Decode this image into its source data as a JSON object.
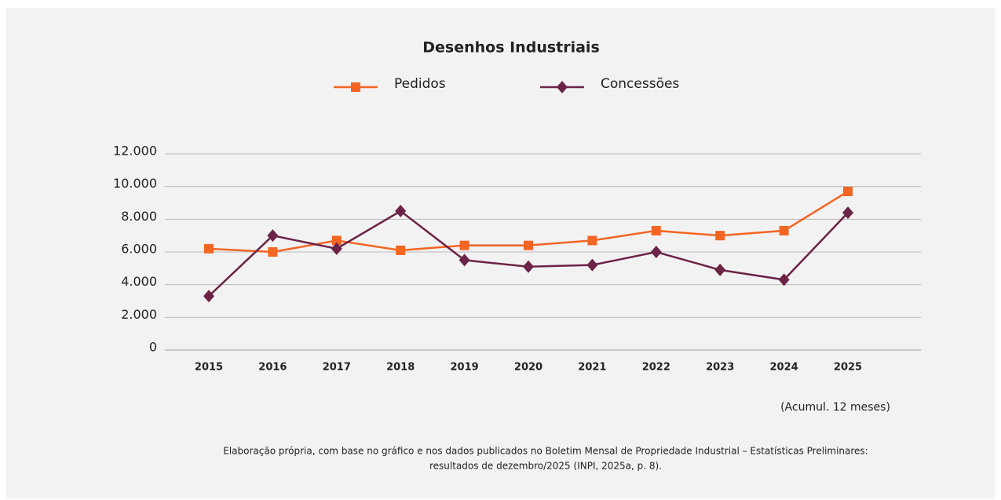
{
  "chart_data": {
    "type": "line",
    "title": "Desenhos Industriais",
    "categories": [
      "2015",
      "2016",
      "2017",
      "2018",
      "2019",
      "2020",
      "2021",
      "2022",
      "2023",
      "2024",
      "2025"
    ],
    "series": [
      {
        "name": "Pedidos",
        "color": "#f26522",
        "marker": "square",
        "values": [
          6200,
          6000,
          6700,
          6100,
          6400,
          6400,
          6700,
          7300,
          7000,
          7300,
          9700
        ]
      },
      {
        "name": "Concessões",
        "color": "#6b2346",
        "marker": "diamond",
        "values": [
          3300,
          7000,
          6200,
          8500,
          5500,
          5100,
          5200,
          6000,
          4900,
          4300,
          8400
        ]
      }
    ],
    "ylim": [
      0,
      12000
    ],
    "yticks": [
      {
        "value": 0,
        "label": "0"
      },
      {
        "value": 2000,
        "label": "2.000"
      },
      {
        "value": 4000,
        "label": "4.000"
      },
      {
        "value": 6000,
        "label": "6.000"
      },
      {
        "value": 8000,
        "label": "8.000"
      },
      {
        "value": 10000,
        "label": "10.000"
      },
      {
        "value": 12000,
        "label": "12.000"
      }
    ],
    "grid": true,
    "note": "(Acumul. 12 meses)",
    "source": [
      "Elaboração própria, com base no gráfico e nos dados publicados no Boletim Mensal de Propriedade Industrial – Estatísticas Preliminares:",
      "resultados de dezembro/2025 (INPI, 2025a, p. 8)."
    ]
  }
}
